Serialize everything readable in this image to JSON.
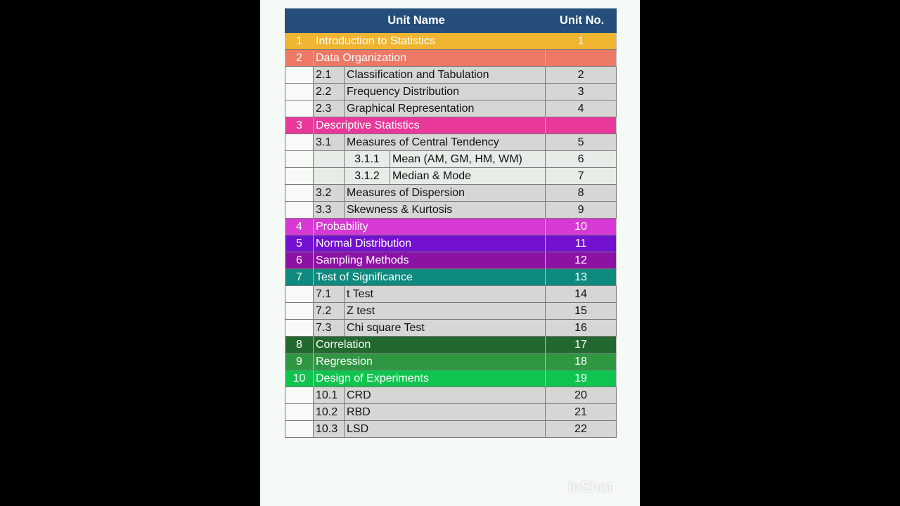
{
  "header": {
    "unit_name": "Unit Name",
    "unit_no": "Unit No."
  },
  "rows": [
    {
      "level": 1,
      "code": "1",
      "name": "Introduction to Statistics",
      "unit": "1",
      "color": "#f0b530"
    },
    {
      "level": 1,
      "code": "2",
      "name": "Data Organization",
      "unit": "",
      "color": "#ee7866"
    },
    {
      "level": 2,
      "code": "2.1",
      "name": "Classification and Tabulation",
      "unit": "2"
    },
    {
      "level": 2,
      "code": "2.2",
      "name": "Frequency Distribution",
      "unit": "3"
    },
    {
      "level": 2,
      "code": "2.3",
      "name": "Graphical Representation",
      "unit": "4"
    },
    {
      "level": 1,
      "code": "3",
      "name": "Descriptive Statistics",
      "unit": "",
      "color": "#e8389a"
    },
    {
      "level": 2,
      "code": "3.1",
      "name": "Measures of Central Tendency",
      "unit": "5"
    },
    {
      "level": 3,
      "code": "3.1.1",
      "name": "Mean (AM, GM, HM, WM)",
      "unit": "6"
    },
    {
      "level": 3,
      "code": "3.1.2",
      "name": "Median & Mode",
      "unit": "7"
    },
    {
      "level": 2,
      "code": "3.2",
      "name": "Measures of Dispersion",
      "unit": "8"
    },
    {
      "level": 2,
      "code": "3.3",
      "name": "Skewness & Kurtosis",
      "unit": "9"
    },
    {
      "level": 1,
      "code": "4",
      "name": "Probability",
      "unit": "10",
      "color": "#d639d4"
    },
    {
      "level": 1,
      "code": "5",
      "name": "Normal Distribution",
      "unit": "11",
      "color": "#7410d0"
    },
    {
      "level": 1,
      "code": "6",
      "name": "Sampling Methods",
      "unit": "12",
      "color": "#8c12a4"
    },
    {
      "level": 1,
      "code": "7",
      "name": "Test of Significance",
      "unit": "13",
      "color": "#0e8a7e"
    },
    {
      "level": 2,
      "code": "7.1",
      "name": "t Test",
      "unit": "14"
    },
    {
      "level": 2,
      "code": "7.2",
      "name": "Z test",
      "unit": "15"
    },
    {
      "level": 2,
      "code": "7.3",
      "name": "Chi square Test",
      "unit": "16"
    },
    {
      "level": 1,
      "code": "8",
      "name": "Correlation",
      "unit": "17",
      "color": "#23682f"
    },
    {
      "level": 1,
      "code": "9",
      "name": "Regression",
      "unit": "18",
      "color": "#2f9641"
    },
    {
      "level": 1,
      "code": "10",
      "name": "Design  of Experiments",
      "unit": "19",
      "color": "#10c450"
    },
    {
      "level": 2,
      "code": "10.1",
      "name": "CRD",
      "unit": "20"
    },
    {
      "level": 2,
      "code": "10.2",
      "name": "RBD",
      "unit": "21"
    },
    {
      "level": 2,
      "code": "10.3",
      "name": "LSD",
      "unit": "22"
    }
  ],
  "watermark": "InShot"
}
